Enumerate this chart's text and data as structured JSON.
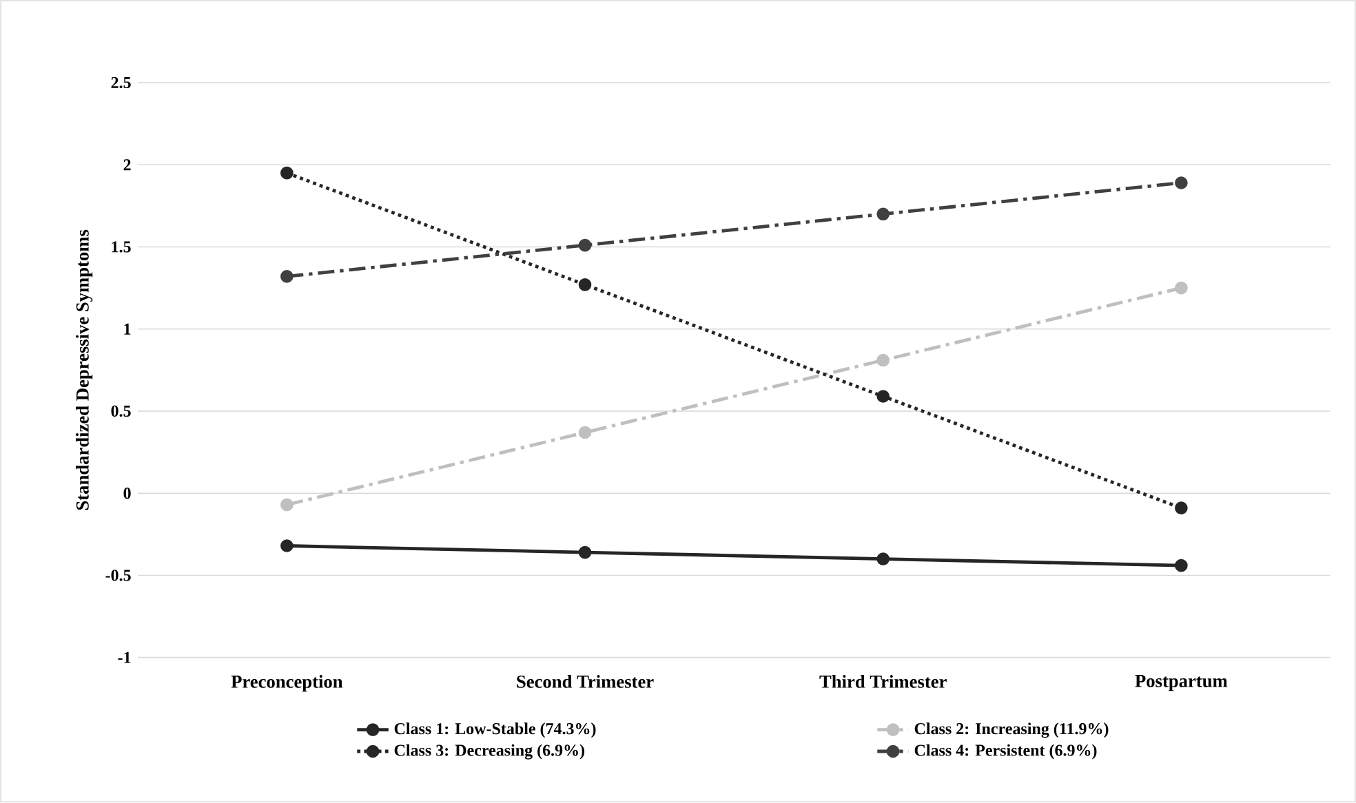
{
  "chart_data": {
    "type": "line",
    "ylabel": "Standardized Depressive Symptoms",
    "categories": [
      "Preconception",
      "Second Trimester",
      "Third Trimester",
      "Postpartum"
    ],
    "series": [
      {
        "name": "Class 1: Low-Stable (74.3%)",
        "color": "#262626",
        "line_style": "solid",
        "values": [
          -0.32,
          -0.36,
          -0.4,
          -0.44
        ]
      },
      {
        "name": "Class 2: Increasing (11.9%)",
        "color": "#bfbfbf",
        "line_style": "dashed",
        "values": [
          -0.07,
          0.37,
          0.81,
          1.25
        ]
      },
      {
        "name": "Class 3: Decreasing (6.9%)",
        "color": "#262626",
        "line_style": "dotted",
        "values": [
          1.95,
          1.27,
          0.59,
          -0.09
        ]
      },
      {
        "name": "Class 4: Persistent (6.9%)",
        "color": "#404040",
        "line_style": "dashed",
        "values": [
          1.32,
          1.51,
          1.7,
          1.89
        ]
      }
    ],
    "ylim": [
      -1,
      2.5
    ],
    "yticks": [
      -1,
      -0.5,
      0,
      0.5,
      1,
      1.5,
      2,
      2.5
    ],
    "grid": "y",
    "legend": "bottom",
    "marker": "circle"
  }
}
